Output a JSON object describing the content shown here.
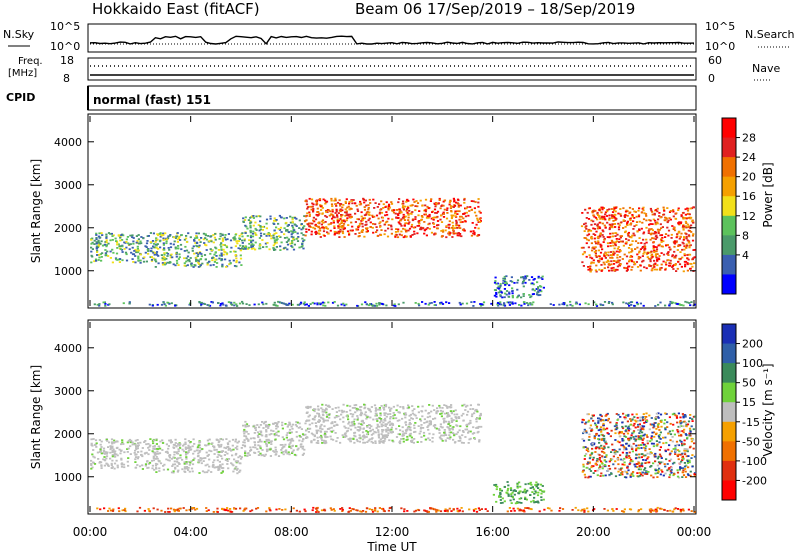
{
  "header": {
    "radar_title": "Hokkaido East (fitACF)",
    "beam_date": "Beam 06  17/Sep/2019 – 18/Sep/2019"
  },
  "status_panels": {
    "nsky_label": "N.Sky",
    "nsky_ticks": [
      "10^5",
      "10^0"
    ],
    "nsearch_label": "N.Search",
    "nsearch_ticks": [
      "10^5",
      "10^0"
    ],
    "freq_label": "Freq.",
    "freq_unit": "[MHz]",
    "freq_ticks": [
      "18",
      "8"
    ],
    "nave_label": "Nave",
    "nave_ticks": [
      "60",
      "0"
    ],
    "cpid_label": "CPID",
    "cpid_value": "normal (fast) 151"
  },
  "chart_data": [
    {
      "type": "heatmap",
      "name": "power",
      "ylabel": "Slant Range [km]",
      "xlabel": "",
      "yticks": [
        1000,
        2000,
        3000,
        4000
      ],
      "ylim": [
        180,
        4600
      ],
      "x_ticks": [
        "00:00",
        "04:00",
        "08:00",
        "12:00",
        "16:00",
        "20:00",
        "00:00"
      ],
      "xlim_hours": [
        0,
        24
      ],
      "colorbar": {
        "label": "Power [dB]",
        "ticks": [
          "4",
          "8",
          "12",
          "16",
          "20",
          "24",
          "28"
        ],
        "colors": [
          "#0000ff",
          "#3a5fb0",
          "#4a9a6a",
          "#5cc25c",
          "#f2e01a",
          "#f5a000",
          "#f07000",
          "#e02020",
          "#ff0000"
        ]
      },
      "regions": [
        {
          "t0": 0.0,
          "t1": 2.5,
          "r0": 1200,
          "r1": 1900,
          "level": "mid"
        },
        {
          "t0": 2.5,
          "t1": 6.0,
          "r0": 1100,
          "r1": 1900,
          "level": "mid"
        },
        {
          "t0": 6.0,
          "t1": 8.5,
          "r0": 1500,
          "r1": 2300,
          "level": "mid"
        },
        {
          "t0": 8.5,
          "t1": 15.5,
          "r0": 1800,
          "r1": 2700,
          "level": "high"
        },
        {
          "t0": 16.0,
          "t1": 18.0,
          "r0": 400,
          "r1": 900,
          "level": "low"
        },
        {
          "t0": 19.5,
          "t1": 24.0,
          "r0": 1000,
          "r1": 2500,
          "level": "high"
        },
        {
          "t0": 0.0,
          "t1": 24.0,
          "r0": 200,
          "r1": 300,
          "level": "low"
        }
      ]
    },
    {
      "type": "heatmap",
      "name": "velocity",
      "ylabel": "Slant Range [km]",
      "xlabel": "Time UT",
      "yticks": [
        1000,
        2000,
        3000,
        4000
      ],
      "ylim": [
        180,
        4600
      ],
      "x_ticks": [
        "00:00",
        "04:00",
        "08:00",
        "12:00",
        "16:00",
        "20:00",
        "00:00"
      ],
      "xlim_hours": [
        0,
        24
      ],
      "colorbar": {
        "label": "Velocity [m s⁻¹]",
        "ticks": [
          "200",
          "100",
          "50",
          "15",
          "-15",
          "-50",
          "-100",
          "-200"
        ],
        "colors": [
          "#1a2fb5",
          "#2f5fa8",
          "#3a8a5a",
          "#6fd23a",
          "#bebebe",
          "#f5a000",
          "#f07000",
          "#e03010",
          "#ff0000"
        ]
      },
      "regions": [
        {
          "t0": 0.0,
          "t1": 2.5,
          "r0": 1200,
          "r1": 1900,
          "level": "ground"
        },
        {
          "t0": 2.5,
          "t1": 6.0,
          "r0": 1100,
          "r1": 1900,
          "level": "ground"
        },
        {
          "t0": 6.0,
          "t1": 8.5,
          "r0": 1500,
          "r1": 2300,
          "level": "ground"
        },
        {
          "t0": 8.5,
          "t1": 15.5,
          "r0": 1800,
          "r1": 2700,
          "level": "ground"
        },
        {
          "t0": 16.0,
          "t1": 18.0,
          "r0": 400,
          "r1": 900,
          "level": "pos"
        },
        {
          "t0": 19.5,
          "t1": 24.0,
          "r0": 1000,
          "r1": 2500,
          "level": "mix"
        },
        {
          "t0": 0.0,
          "t1": 24.0,
          "r0": 200,
          "r1": 300,
          "level": "neg"
        }
      ]
    }
  ]
}
